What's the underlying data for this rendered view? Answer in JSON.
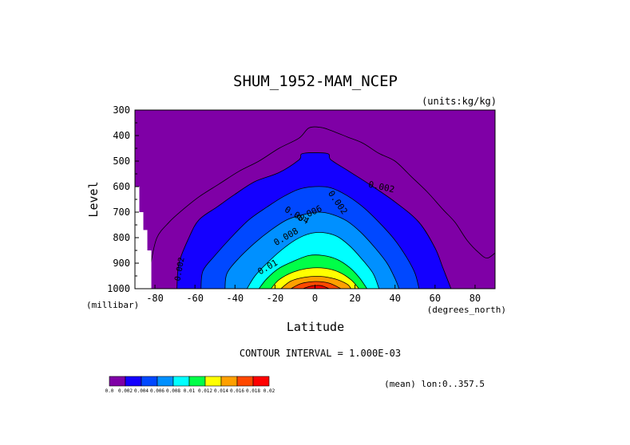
{
  "chart_data": {
    "type": "contour",
    "title": "SHUM_1952-MAM_NCEP",
    "units_label": "(units:kg/kg)",
    "xlabel": "Latitude",
    "x_units_label": "(degrees_north)",
    "ylabel": "Level",
    "y_units_label": "(millibar)",
    "xlim": [
      -90,
      90
    ],
    "ylim": [
      1000,
      300
    ],
    "x_ticks": [
      -80,
      -60,
      -40,
      -20,
      0,
      20,
      40,
      60,
      80
    ],
    "y_ticks": [
      300,
      400,
      500,
      600,
      700,
      800,
      900,
      1000
    ],
    "contour_interval_label": "CONTOUR INTERVAL = 1.000E-03",
    "mean_label": "(mean) lon:0..357.5",
    "inline_labels": [
      "0.002",
      "0.004",
      "0.006",
      "0.008",
      "0.01",
      "0.002"
    ],
    "legend": {
      "levels": [
        "0.0",
        "0.002",
        "0.004",
        "0.006",
        "0.008",
        "0.01",
        "0.012",
        "0.014",
        "0.016",
        "0.018",
        "0.02"
      ],
      "colors": [
        "#7f00a6",
        "#1400ff",
        "#0048ff",
        "#0090ff",
        "#00ffff",
        "#00ff48",
        "#ffff00",
        "#ffa000",
        "#ff4800",
        "#ff0000"
      ]
    },
    "fill_levels": [
      {
        "value": 0.002,
        "color": "#1400ff",
        "points": [
          [
            -69,
            1000
          ],
          [
            -68,
            900
          ],
          [
            -63,
            800
          ],
          [
            -58,
            730
          ],
          [
            -49,
            680
          ],
          [
            -40,
            630
          ],
          [
            -30,
            580
          ],
          [
            -18,
            545
          ],
          [
            -8,
            495
          ],
          [
            -6,
            470
          ],
          [
            6,
            470
          ],
          [
            8,
            495
          ],
          [
            17,
            540
          ],
          [
            27,
            590
          ],
          [
            40,
            660
          ],
          [
            52,
            740
          ],
          [
            60,
            840
          ],
          [
            64,
            920
          ],
          [
            68,
            1000
          ]
        ]
      },
      {
        "value": 0.004,
        "color": "#0048ff",
        "points": [
          [
            -57,
            1000
          ],
          [
            -56,
            930
          ],
          [
            -50,
            870
          ],
          [
            -42,
            800
          ],
          [
            -33,
            730
          ],
          [
            -24,
            680
          ],
          [
            -16,
            640
          ],
          [
            -8,
            610
          ],
          [
            0,
            600
          ],
          [
            8,
            605
          ],
          [
            16,
            635
          ],
          [
            24,
            680
          ],
          [
            32,
            740
          ],
          [
            40,
            810
          ],
          [
            46,
            880
          ],
          [
            50,
            940
          ],
          [
            52,
            1000
          ]
        ]
      },
      {
        "value": 0.006,
        "color": "#0090ff",
        "points": [
          [
            -45,
            1000
          ],
          [
            -44,
            940
          ],
          [
            -38,
            880
          ],
          [
            -30,
            820
          ],
          [
            -22,
            770
          ],
          [
            -14,
            730
          ],
          [
            -6,
            710
          ],
          [
            2,
            700
          ],
          [
            9,
            710
          ],
          [
            16,
            735
          ],
          [
            23,
            780
          ],
          [
            30,
            840
          ],
          [
            36,
            900
          ],
          [
            40,
            960
          ],
          [
            42,
            1000
          ]
        ]
      },
      {
        "value": 0.008,
        "color": "#00ffff",
        "points": [
          [
            -34,
            1000
          ],
          [
            -30,
            950
          ],
          [
            -24,
            900
          ],
          [
            -17,
            850
          ],
          [
            -10,
            810
          ],
          [
            -3,
            785
          ],
          [
            4,
            780
          ],
          [
            11,
            795
          ],
          [
            17,
            830
          ],
          [
            23,
            880
          ],
          [
            29,
            940
          ],
          [
            32,
            1000
          ]
        ]
      },
      {
        "value": 0.01,
        "color": "#00ff48",
        "points": [
          [
            -28,
            1000
          ],
          [
            -24,
            960
          ],
          [
            -18,
            920
          ],
          [
            -10,
            890
          ],
          [
            -3,
            870
          ],
          [
            4,
            870
          ],
          [
            11,
            885
          ],
          [
            17,
            915
          ],
          [
            22,
            955
          ],
          [
            26,
            1000
          ]
        ]
      },
      {
        "value": 0.012,
        "color": "#ffff00",
        "points": [
          [
            -22,
            1000
          ],
          [
            -18,
            965
          ],
          [
            -11,
            935
          ],
          [
            -3,
            920
          ],
          [
            5,
            920
          ],
          [
            12,
            935
          ],
          [
            18,
            965
          ],
          [
            22,
            1000
          ]
        ]
      },
      {
        "value": 0.014,
        "color": "#ffa000",
        "points": [
          [
            -17,
            1000
          ],
          [
            -12,
            970
          ],
          [
            -5,
            955
          ],
          [
            3,
            952
          ],
          [
            10,
            962
          ],
          [
            16,
            982
          ],
          [
            18,
            1000
          ]
        ]
      },
      {
        "value": 0.016,
        "color": "#ff4800",
        "points": [
          [
            -12,
            1000
          ],
          [
            -7,
            980
          ],
          [
            0,
            972
          ],
          [
            7,
            978
          ],
          [
            13,
            1000
          ]
        ]
      },
      {
        "value": 0.018,
        "color": "#ff0000",
        "points": [
          [
            -6,
            1000
          ],
          [
            -2,
            990
          ],
          [
            3,
            988
          ],
          [
            7,
            1000
          ]
        ]
      }
    ],
    "outer_contour_line": [
      [
        -84,
        1000
      ],
      [
        -82,
        900
      ],
      [
        -79,
        800
      ],
      [
        -73,
        740
      ],
      [
        -66,
        690
      ],
      [
        -58,
        640
      ],
      [
        -48,
        590
      ],
      [
        -38,
        540
      ],
      [
        -28,
        500
      ],
      [
        -18,
        450
      ],
      [
        -8,
        410
      ],
      [
        -3,
        370
      ],
      [
        3,
        368
      ],
      [
        8,
        380
      ],
      [
        16,
        405
      ],
      [
        24,
        430
      ],
      [
        32,
        470
      ],
      [
        40,
        500
      ],
      [
        48,
        560
      ],
      [
        56,
        620
      ],
      [
        64,
        690
      ],
      [
        70,
        740
      ],
      [
        76,
        810
      ],
      [
        82,
        860
      ],
      [
        86,
        880
      ],
      [
        90,
        860
      ]
    ],
    "missing_data": [
      {
        "from_x": -90,
        "to_x": -88,
        "top_y": 600
      },
      {
        "from_x": -88,
        "to_x": -86,
        "top_y": 700
      },
      {
        "from_x": -86,
        "to_x": -84,
        "top_y": 770
      },
      {
        "from_x": -84,
        "to_x": -82,
        "top_y": 850
      }
    ]
  }
}
